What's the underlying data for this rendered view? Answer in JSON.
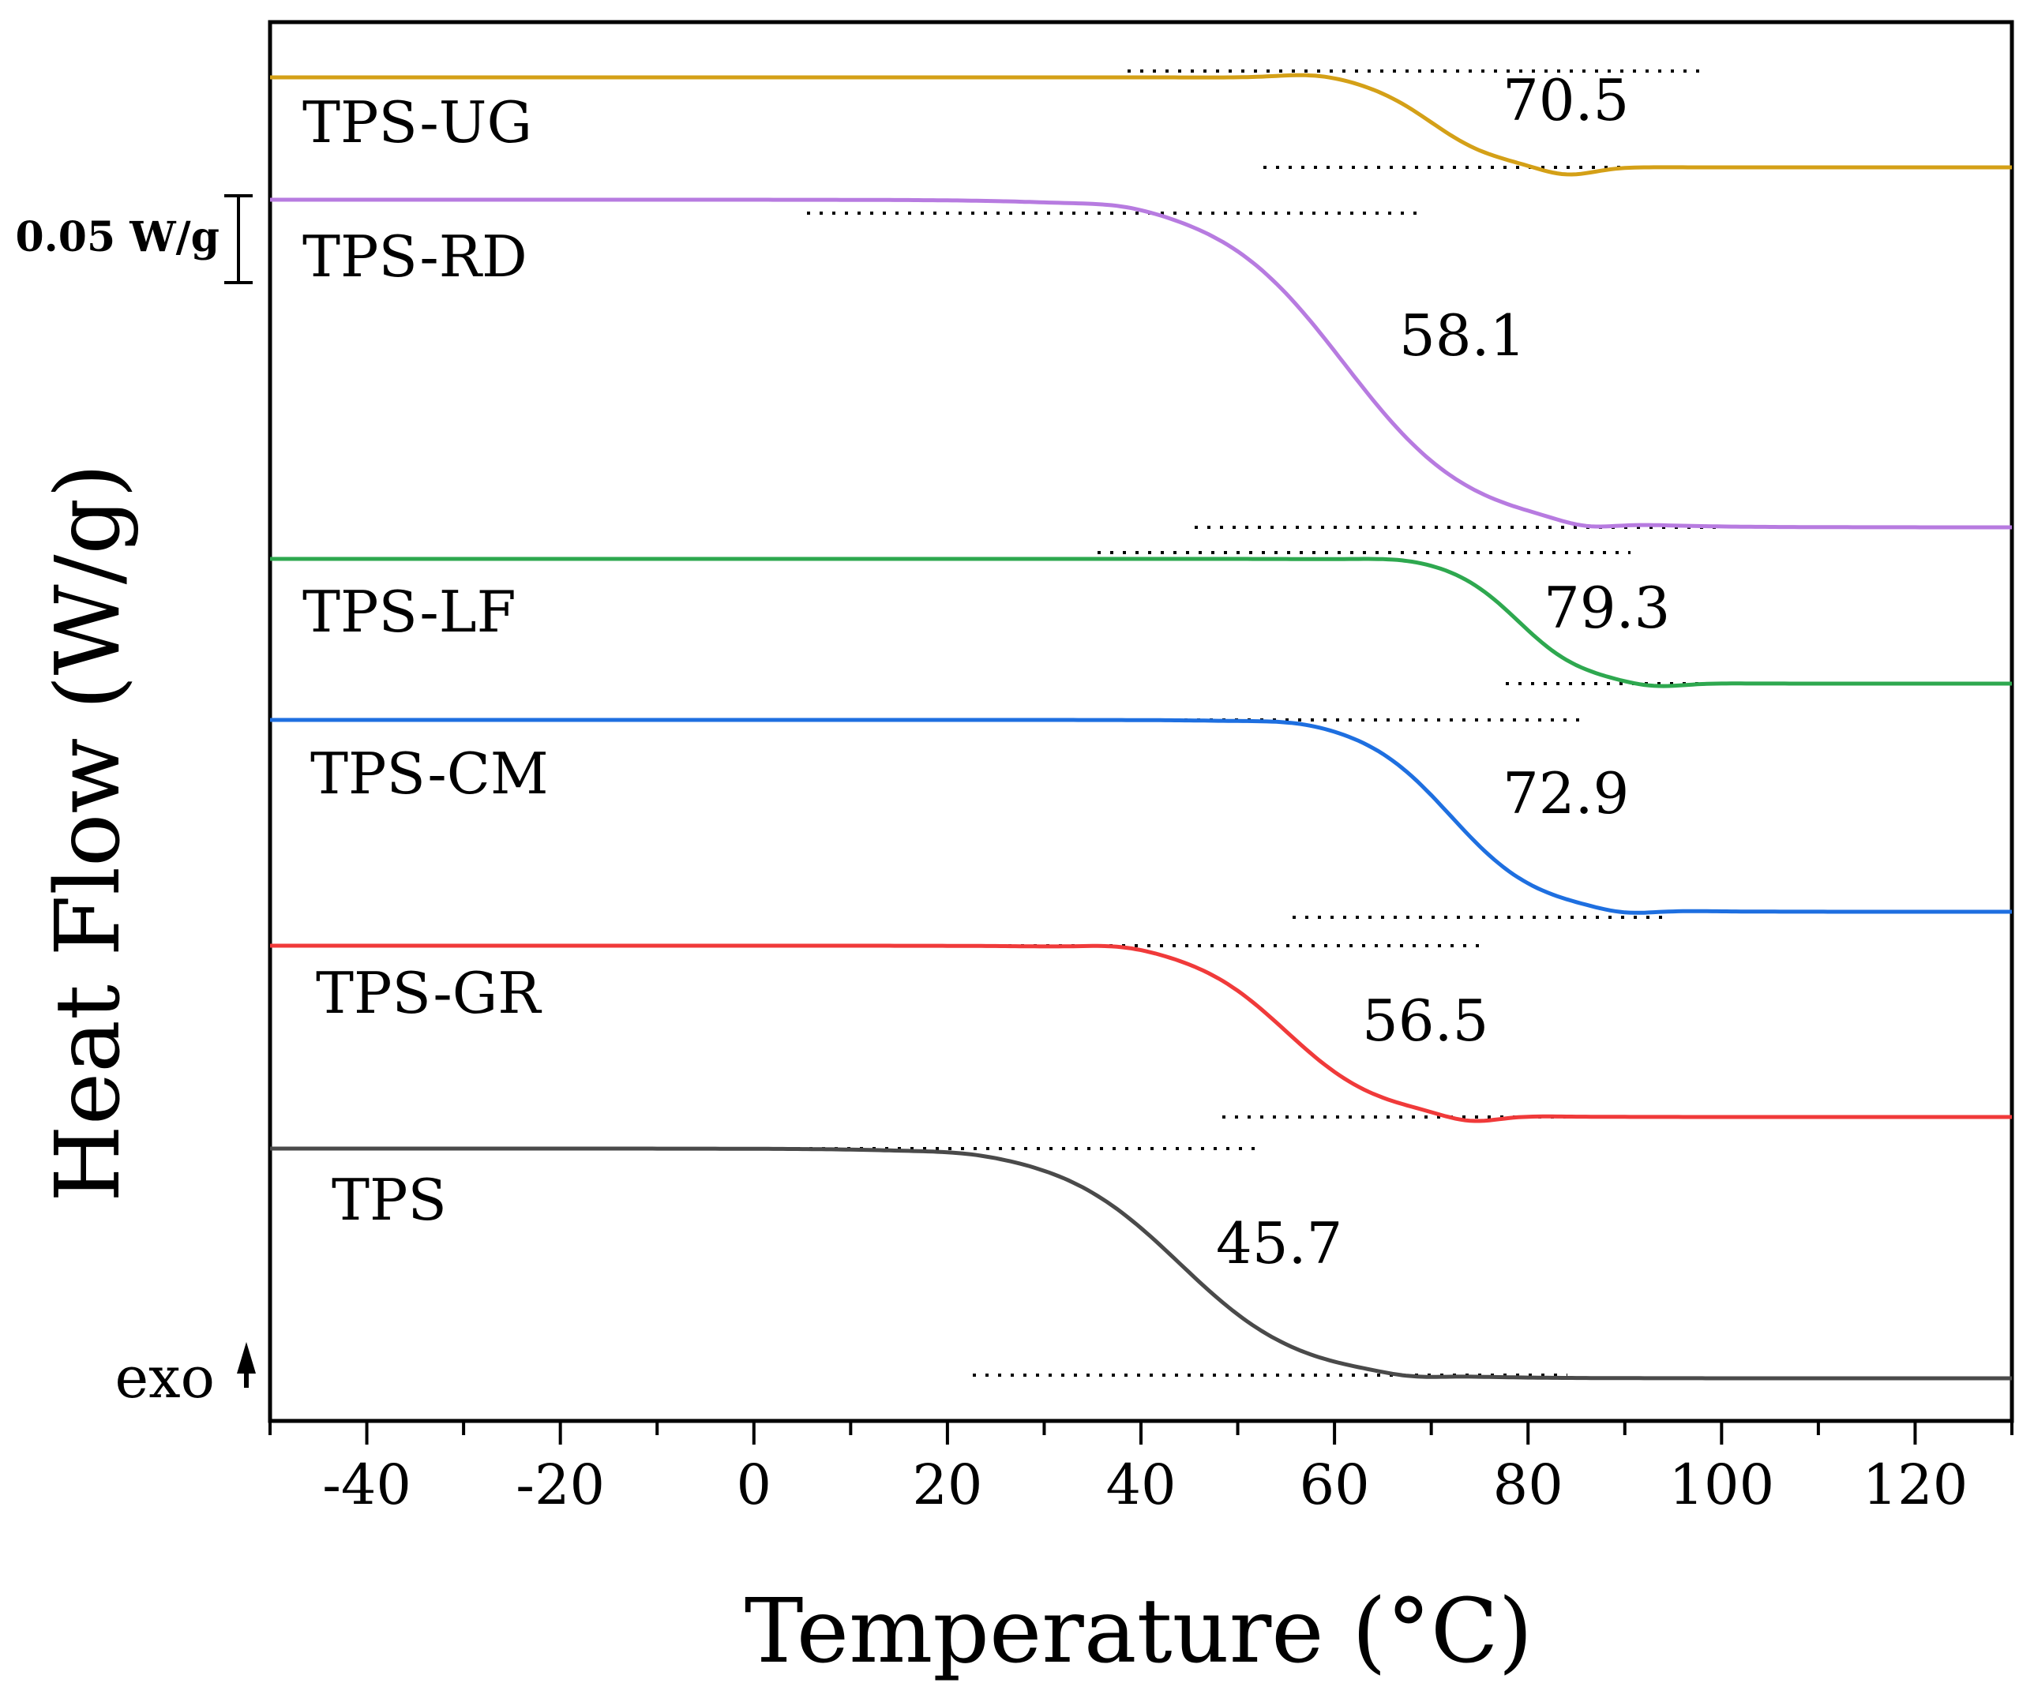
{
  "chart_data": {
    "type": "line",
    "xlabel": "Temperature (°C)",
    "ylabel": "Heat Flow (W/g)",
    "xlim": [
      -50,
      130
    ],
    "xticks": [
      -40,
      -20,
      0,
      20,
      40,
      60,
      80,
      100,
      120
    ],
    "scale_bar_label": "0.05 W/g",
    "exo_label": "exo",
    "grid": false,
    "series": [
      {
        "name": "TPS-UG",
        "color": "#D4A017",
        "tg": "70.5",
        "tg_value": 70.5,
        "onset": 58,
        "end": 82,
        "overshoot": 0.006
      },
      {
        "name": "TPS-RD",
        "color": "#B77BE0",
        "tg": "58.1",
        "tg_value": 58.1,
        "onset": 38,
        "end": 84,
        "overshoot": 0.004
      },
      {
        "name": "TPS-LF",
        "color": "#2EA84F",
        "tg": "79.3",
        "tg_value": 79.3,
        "onset": 67,
        "end": 91,
        "overshoot": 0.003
      },
      {
        "name": "TPS-CM",
        "color": "#1E6FE0",
        "tg": "72.9",
        "tg_value": 72.9,
        "onset": 56,
        "end": 88,
        "overshoot": 0.003
      },
      {
        "name": "TPS-GR",
        "color": "#F03A3A",
        "tg": "56.5",
        "tg_value": 56.5,
        "onset": 38,
        "end": 72,
        "overshoot": 0.005
      },
      {
        "name": "TPS",
        "color": "#4A4A4A",
        "tg": "45.7",
        "tg_value": 45.7,
        "onset": 22,
        "end": 66,
        "overshoot": 0.002
      }
    ]
  }
}
